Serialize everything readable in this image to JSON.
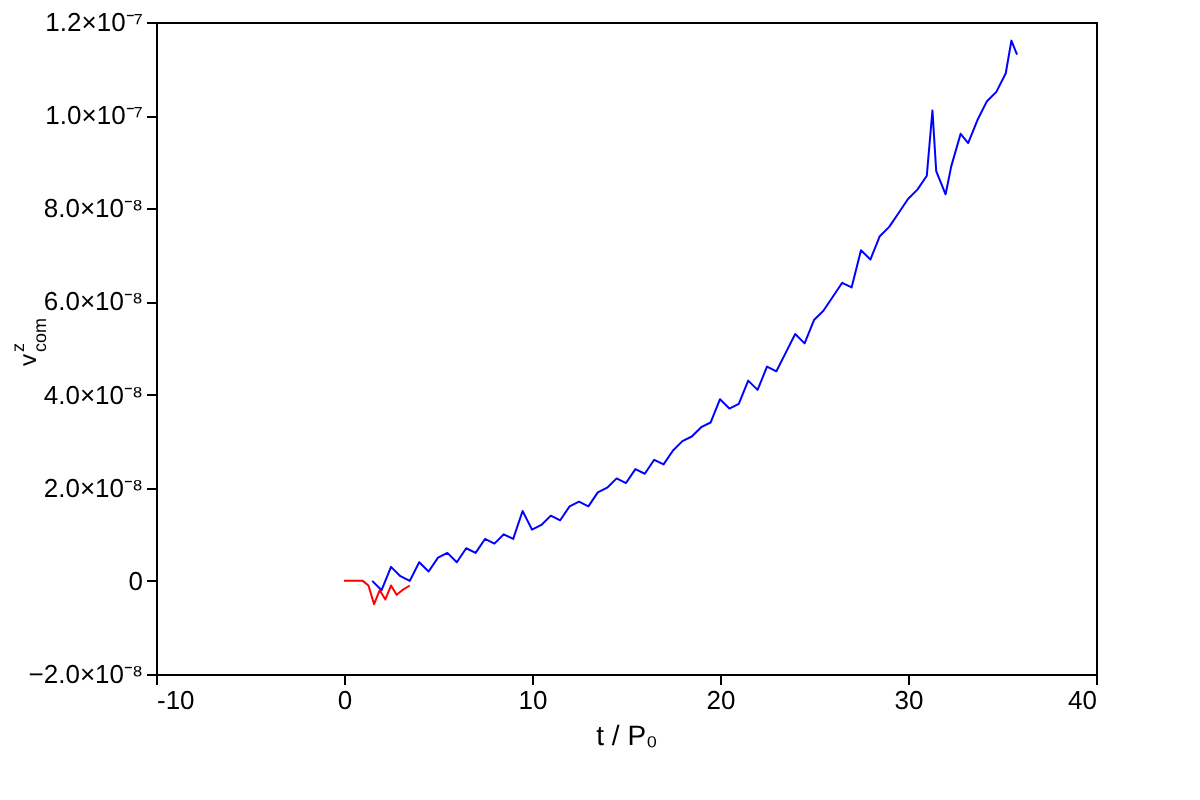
{
  "chart_data": {
    "type": "line",
    "xlabel": "t / P₀",
    "ylabel": "v$^{z}$$_{com}$",
    "xlim": [
      -10,
      40
    ],
    "xticks": [
      -10,
      0,
      10,
      20,
      30,
      40
    ],
    "ylim": [
      -2e-08,
      1.2e-07
    ],
    "yticks": [
      {
        "value": -2e-08,
        "label": "−2.0×10⁻⁸"
      },
      {
        "value": 0,
        "label": "0"
      },
      {
        "value": 2e-08,
        "label": "2.0×10⁻⁸"
      },
      {
        "value": 4e-08,
        "label": "4.0×10⁻⁸"
      },
      {
        "value": 6e-08,
        "label": "6.0×10⁻⁸"
      },
      {
        "value": 8e-08,
        "label": "8.0×10⁻⁸"
      },
      {
        "value": 1e-07,
        "label": "1.0×10⁻⁷"
      },
      {
        "value": 1.2e-07,
        "label": "1.2×10⁻⁷"
      }
    ],
    "grid": false,
    "marker": "none",
    "line_style": "solid",
    "series": [
      {
        "color": "#0000ff",
        "x": [
          1.5,
          2,
          2.5,
          3,
          3.5,
          4,
          4.5,
          5,
          5.5,
          6,
          6.5,
          7,
          7.5,
          8,
          8.5,
          9,
          9.5,
          10,
          10.5,
          11,
          11.5,
          12,
          12.5,
          13,
          13.5,
          14,
          14.5,
          15,
          15.5,
          16,
          16.5,
          17,
          17.5,
          18,
          18.5,
          19,
          19.5,
          20,
          20.5,
          21,
          21.5,
          22,
          22.5,
          23,
          23.5,
          24,
          24.5,
          25,
          25.5,
          26,
          26.5,
          27,
          27.5,
          28,
          28.5,
          29,
          29.5,
          30,
          30.5,
          31,
          31.3,
          31.5,
          32,
          32.3,
          32.8,
          33.2,
          33.7,
          34.2,
          34.7,
          35.2,
          35.5,
          35.8
        ],
        "values": [
          0.0,
          -2e-09,
          3e-09,
          1e-09,
          0.0,
          4e-09,
          2e-09,
          5e-09,
          6e-09,
          4e-09,
          7e-09,
          6e-09,
          9e-09,
          8e-09,
          1e-08,
          9e-09,
          1.5e-08,
          1.1e-08,
          1.2e-08,
          1.4e-08,
          1.3e-08,
          1.6e-08,
          1.7e-08,
          1.6e-08,
          1.9e-08,
          2e-08,
          2.2e-08,
          2.1e-08,
          2.4e-08,
          2.3e-08,
          2.6e-08,
          2.5e-08,
          2.8e-08,
          3e-08,
          3.1e-08,
          3.3e-08,
          3.4e-08,
          3.9e-08,
          3.7e-08,
          3.8e-08,
          4.3e-08,
          4.1e-08,
          4.6e-08,
          4.5e-08,
          4.9e-08,
          5.3e-08,
          5.1e-08,
          5.6e-08,
          5.8e-08,
          6.1e-08,
          6.4e-08,
          6.3e-08,
          7.1e-08,
          6.9e-08,
          7.4e-08,
          7.6e-08,
          7.9e-08,
          8.2e-08,
          8.4e-08,
          8.7e-08,
          1.01e-07,
          8.8e-08,
          8.3e-08,
          8.9e-08,
          9.6e-08,
          9.4e-08,
          9.9e-08,
          1.03e-07,
          1.05e-07,
          1.09e-07,
          1.16e-07,
          1.13e-07
        ]
      },
      {
        "color": "#ff0000",
        "x": [
          0,
          1,
          1.3,
          1.6,
          1.9,
          2.2,
          2.5,
          2.8,
          3.1,
          3.5
        ],
        "values": [
          0,
          0,
          -1e-09,
          -5e-09,
          -2e-09,
          -4e-09,
          -1e-09,
          -3e-09,
          -2e-09,
          -1e-09
        ]
      }
    ]
  }
}
